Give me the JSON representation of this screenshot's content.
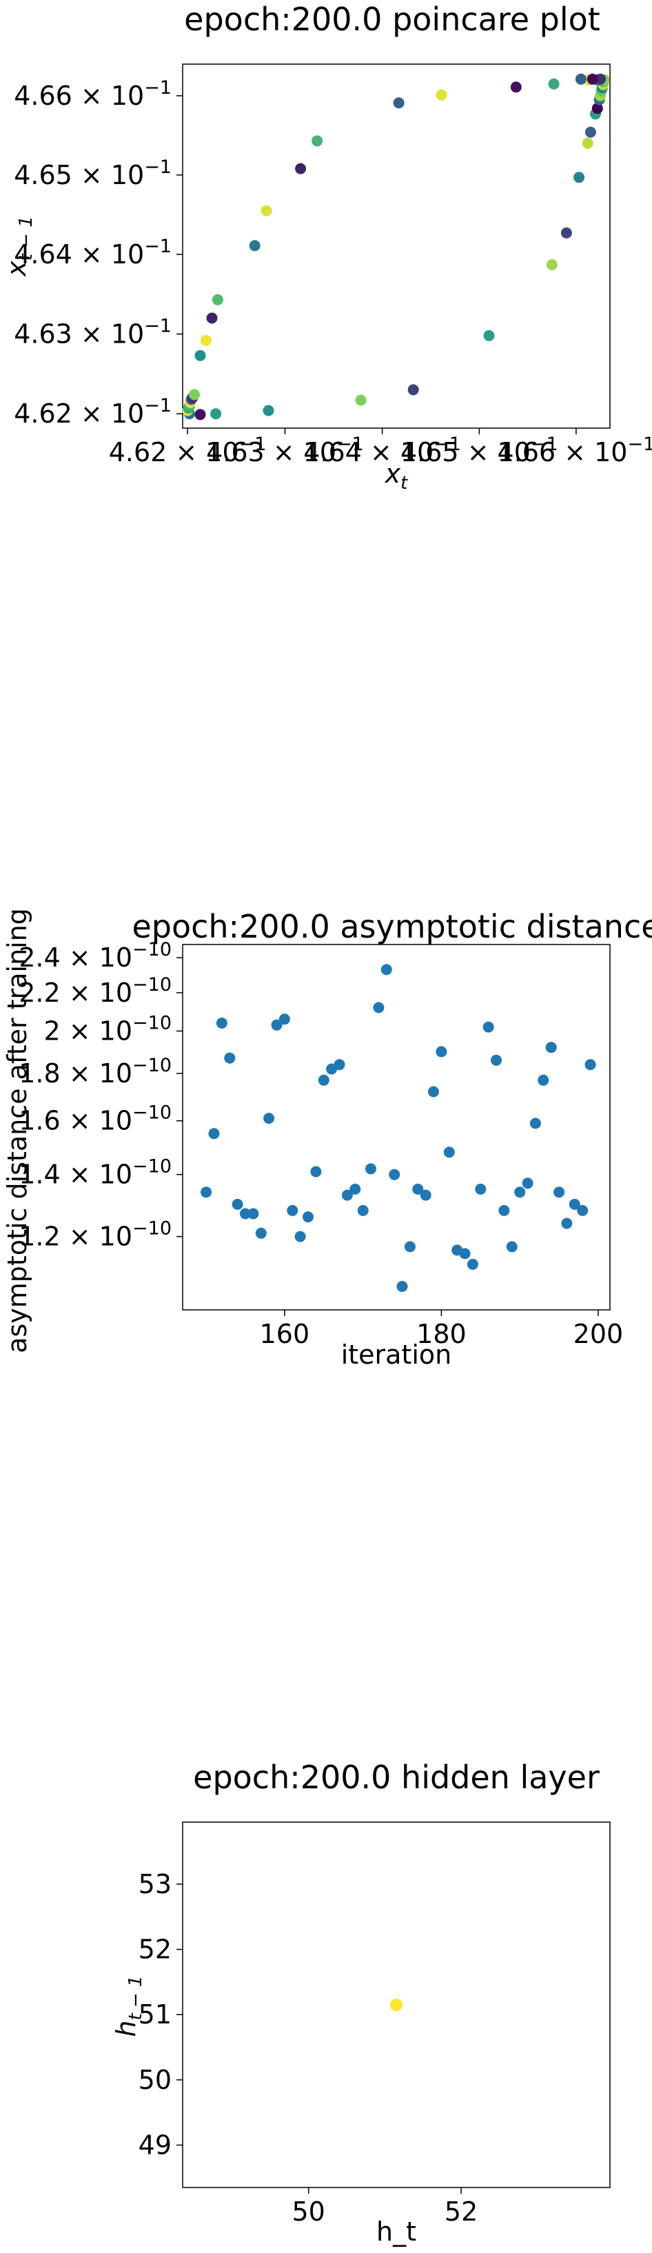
{
  "chart_data": [
    {
      "type": "scatter",
      "title": "epoch:200.0 poincare plot",
      "xlabel": "x_t",
      "ylabel": "x_{t-1}",
      "x_scale": "log",
      "y_scale": "log",
      "xlim": [
        0.46195,
        0.46635
      ],
      "ylim": [
        0.46182,
        0.4664
      ],
      "xticks": [
        {
          "value": 0.462,
          "mant": "4.62",
          "exp": "−1"
        },
        {
          "value": 0.463,
          "mant": "4.63",
          "exp": "−1"
        },
        {
          "value": 0.464,
          "mant": "4.64",
          "exp": "−1"
        },
        {
          "value": 0.465,
          "mant": "4.65",
          "exp": "−1"
        },
        {
          "value": 0.466,
          "mant": "4.66",
          "exp": "−1"
        }
      ],
      "yticks": [
        {
          "value": 0.462,
          "mant": "4.62",
          "exp": "−1"
        },
        {
          "value": 0.463,
          "mant": "4.63",
          "exp": "−1"
        },
        {
          "value": 0.464,
          "mant": "4.64",
          "exp": "−1"
        },
        {
          "value": 0.465,
          "mant": "4.65",
          "exp": "−1"
        },
        {
          "value": 0.466,
          "mant": "4.66",
          "exp": "−1"
        }
      ],
      "colormap": "viridis",
      "points": [
        {
          "x": 0.46229,
          "y": 0.462,
          "c": 0.55
        },
        {
          "x": 0.46213,
          "y": 0.46199,
          "c": 0.05
        },
        {
          "x": 0.46202,
          "y": 0.462,
          "c": 0.4
        },
        {
          "x": 0.462,
          "y": 0.46204,
          "c": 0.95
        },
        {
          "x": 0.46201,
          "y": 0.46207,
          "c": 0.6
        },
        {
          "x": 0.46202,
          "y": 0.4621,
          "c": 0.65
        },
        {
          "x": 0.46203,
          "y": 0.46214,
          "c": 0.97
        },
        {
          "x": 0.46204,
          "y": 0.46218,
          "c": 0.3
        },
        {
          "x": 0.46205,
          "y": 0.4622,
          "c": 0.15
        },
        {
          "x": 0.46207,
          "y": 0.46224,
          "c": 0.8
        },
        {
          "x": 0.46213,
          "y": 0.46273,
          "c": 0.5
        },
        {
          "x": 0.46219,
          "y": 0.46292,
          "c": 0.98
        },
        {
          "x": 0.46225,
          "y": 0.4632,
          "c": 0.1
        },
        {
          "x": 0.46231,
          "y": 0.46343,
          "c": 0.7
        },
        {
          "x": 0.46283,
          "y": 0.46204,
          "c": 0.5
        },
        {
          "x": 0.46269,
          "y": 0.46411,
          "c": 0.4
        },
        {
          "x": 0.46281,
          "y": 0.46455,
          "c": 0.95
        },
        {
          "x": 0.46316,
          "y": 0.46508,
          "c": 0.1
        },
        {
          "x": 0.46333,
          "y": 0.46543,
          "c": 0.65
        },
        {
          "x": 0.46378,
          "y": 0.46217,
          "c": 0.8
        },
        {
          "x": 0.46417,
          "y": 0.46591,
          "c": 0.3
        },
        {
          "x": 0.46432,
          "y": 0.4623,
          "c": 0.2
        },
        {
          "x": 0.46461,
          "y": 0.46601,
          "c": 0.96
        },
        {
          "x": 0.4651,
          "y": 0.46298,
          "c": 0.55
        },
        {
          "x": 0.46538,
          "y": 0.46611,
          "c": 0.05
        },
        {
          "x": 0.46577,
          "y": 0.46615,
          "c": 0.6
        },
        {
          "x": 0.46575,
          "y": 0.46387,
          "c": 0.85
        },
        {
          "x": 0.4659,
          "y": 0.46427,
          "c": 0.2
        },
        {
          "x": 0.46603,
          "y": 0.46497,
          "c": 0.45
        },
        {
          "x": 0.46612,
          "y": 0.4654,
          "c": 0.9
        },
        {
          "x": 0.46615,
          "y": 0.46554,
          "c": 0.3
        },
        {
          "x": 0.4662,
          "y": 0.46577,
          "c": 0.55
        },
        {
          "x": 0.46622,
          "y": 0.46584,
          "c": 0.0
        },
        {
          "x": 0.46624,
          "y": 0.46595,
          "c": 0.35
        },
        {
          "x": 0.46625,
          "y": 0.466,
          "c": 0.85
        },
        {
          "x": 0.46626,
          "y": 0.46606,
          "c": 0.75
        },
        {
          "x": 0.46627,
          "y": 0.4661,
          "c": 0.45
        },
        {
          "x": 0.46628,
          "y": 0.46614,
          "c": 0.9
        },
        {
          "x": 0.46628,
          "y": 0.46618,
          "c": 0.7
        },
        {
          "x": 0.46629,
          "y": 0.4662,
          "c": 0.8
        },
        {
          "x": 0.46622,
          "y": 0.4662,
          "c": 0.4
        },
        {
          "x": 0.46613,
          "y": 0.4662,
          "c": 0.95
        },
        {
          "x": 0.46605,
          "y": 0.46621,
          "c": 0.3
        },
        {
          "x": 0.46625,
          "y": 0.46621,
          "c": 0.15
        },
        {
          "x": 0.46617,
          "y": 0.46621,
          "c": 0.02
        }
      ]
    },
    {
      "type": "scatter",
      "title": "epoch:200.0 asymptotic distance",
      "xlabel": "iteration",
      "ylabel": "asymptotic distance after training",
      "y_scale": "log",
      "xlim": [
        147,
        201.5
      ],
      "ylim": [
        1e-10,
        2.48e-10
      ],
      "color": "#1f77b4",
      "xticks": [
        {
          "value": 160,
          "label": "160"
        },
        {
          "value": 180,
          "label": "180"
        },
        {
          "value": 200,
          "label": "200"
        }
      ],
      "yticks": [
        {
          "value": 1.2e-10,
          "mant": "1.2",
          "exp": "−10"
        },
        {
          "value": 1.4e-10,
          "mant": "1.4",
          "exp": "−10"
        },
        {
          "value": 1.6e-10,
          "mant": "1.6",
          "exp": "−10"
        },
        {
          "value": 1.8e-10,
          "mant": "1.8",
          "exp": "−10"
        },
        {
          "value": 2e-10,
          "mant": "2",
          "exp": "−10"
        },
        {
          "value": 2.2e-10,
          "mant": "2.2",
          "exp": "−10"
        },
        {
          "value": 2.4e-10,
          "mant": "2.4",
          "exp": "−10"
        }
      ],
      "points": [
        {
          "x": 150,
          "y": 1.34e-10
        },
        {
          "x": 151,
          "y": 1.55e-10
        },
        {
          "x": 152,
          "y": 2.04e-10
        },
        {
          "x": 153,
          "y": 1.87e-10
        },
        {
          "x": 154,
          "y": 1.3e-10
        },
        {
          "x": 155,
          "y": 1.27e-10
        },
        {
          "x": 156,
          "y": 1.27e-10
        },
        {
          "x": 157,
          "y": 1.21e-10
        },
        {
          "x": 158,
          "y": 1.61e-10
        },
        {
          "x": 159,
          "y": 2.03e-10
        },
        {
          "x": 160,
          "y": 2.06e-10
        },
        {
          "x": 161,
          "y": 1.28e-10
        },
        {
          "x": 162,
          "y": 1.2e-10
        },
        {
          "x": 163,
          "y": 1.26e-10
        },
        {
          "x": 164,
          "y": 1.41e-10
        },
        {
          "x": 165,
          "y": 1.77e-10
        },
        {
          "x": 166,
          "y": 1.82e-10
        },
        {
          "x": 167,
          "y": 1.84e-10
        },
        {
          "x": 168,
          "y": 1.33e-10
        },
        {
          "x": 169,
          "y": 1.35e-10
        },
        {
          "x": 170,
          "y": 1.28e-10
        },
        {
          "x": 171,
          "y": 1.42e-10
        },
        {
          "x": 172,
          "y": 2.12e-10
        },
        {
          "x": 173,
          "y": 2.33e-10
        },
        {
          "x": 174,
          "y": 1.4e-10
        },
        {
          "x": 175,
          "y": 1.06e-10
        },
        {
          "x": 176,
          "y": 1.17e-10
        },
        {
          "x": 177,
          "y": 1.35e-10
        },
        {
          "x": 178,
          "y": 1.33e-10
        },
        {
          "x": 179,
          "y": 1.72e-10
        },
        {
          "x": 180,
          "y": 1.9e-10
        },
        {
          "x": 181,
          "y": 1.48e-10
        },
        {
          "x": 182,
          "y": 1.16e-10
        },
        {
          "x": 183,
          "y": 1.15e-10
        },
        {
          "x": 184,
          "y": 1.12e-10
        },
        {
          "x": 185,
          "y": 1.35e-10
        },
        {
          "x": 186,
          "y": 2.02e-10
        },
        {
          "x": 187,
          "y": 1.86e-10
        },
        {
          "x": 188,
          "y": 1.28e-10
        },
        {
          "x": 189,
          "y": 1.17e-10
        },
        {
          "x": 190,
          "y": 1.34e-10
        },
        {
          "x": 191,
          "y": 1.37e-10
        },
        {
          "x": 192,
          "y": 1.59e-10
        },
        {
          "x": 193,
          "y": 1.77e-10
        },
        {
          "x": 194,
          "y": 1.92e-10
        },
        {
          "x": 195,
          "y": 1.34e-10
        },
        {
          "x": 196,
          "y": 1.24e-10
        },
        {
          "x": 197,
          "y": 1.3e-10
        },
        {
          "x": 198,
          "y": 1.28e-10
        },
        {
          "x": 199,
          "y": 1.84e-10
        }
      ]
    },
    {
      "type": "scatter",
      "title": "epoch:200.0 hidden layer",
      "xlabel": "h_t",
      "ylabel": "h_{t-1}",
      "xlim": [
        48.35,
        53.95
      ],
      "ylim": [
        48.35,
        53.95
      ],
      "color": "#fde725",
      "xticks": [
        {
          "value": 50,
          "label": "50"
        },
        {
          "value": 52,
          "label": "52"
        }
      ],
      "yticks": [
        {
          "value": 49,
          "label": "49"
        },
        {
          "value": 50,
          "label": "50"
        },
        {
          "value": 51,
          "label": "51"
        },
        {
          "value": 52,
          "label": "52"
        },
        {
          "value": 53,
          "label": "53"
        }
      ],
      "points": [
        {
          "x": 51.15,
          "y": 51.15
        }
      ]
    }
  ]
}
